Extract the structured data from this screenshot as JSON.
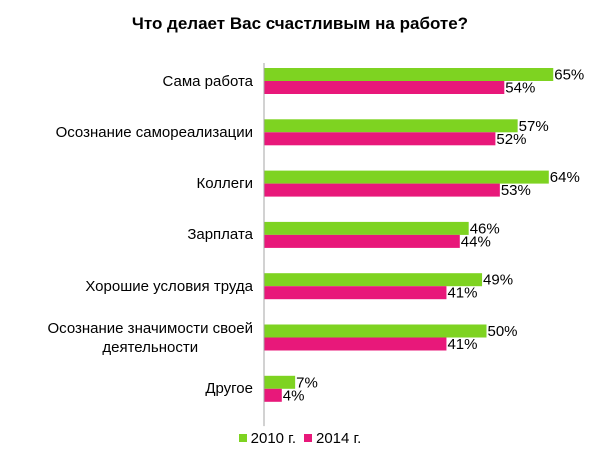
{
  "chart_data": {
    "type": "bar",
    "orientation": "horizontal",
    "title": "Что делает Вас счастливым на работе?",
    "categories": [
      [
        "Сама работа"
      ],
      [
        "Осознание самореализации"
      ],
      [
        "Коллеги"
      ],
      [
        "Зарплата"
      ],
      [
        "Хорошие условия труда"
      ],
      [
        "Осознание значимости своей",
        "деятельности"
      ],
      [
        "Другое"
      ]
    ],
    "series": [
      {
        "name": "2010 г.",
        "color": "#7ed321",
        "values": [
          65,
          57,
          64,
          46,
          49,
          50,
          7
        ],
        "labels": [
          "65%",
          "57%",
          "64%",
          "46%",
          "49%",
          "50%",
          "7%"
        ]
      },
      {
        "name": "2014 г.",
        "color": "#e8187a",
        "values": [
          54,
          52,
          53,
          44,
          41,
          41,
          4
        ],
        "labels": [
          "54%",
          "52%",
          "53%",
          "44%",
          "41%",
          "41%",
          "4%"
        ]
      }
    ],
    "xlim": [
      0,
      65
    ],
    "grid": false,
    "legend_position": "bottom"
  }
}
